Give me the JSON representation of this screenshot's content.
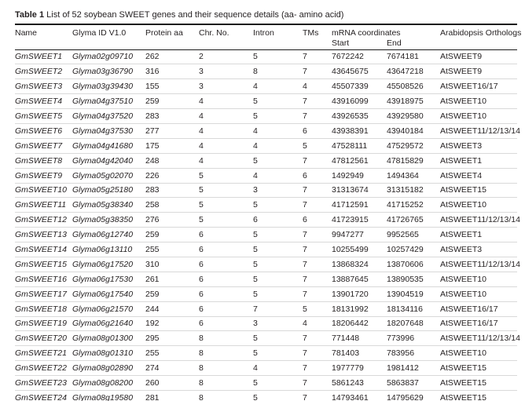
{
  "table": {
    "label": "Table 1",
    "caption": " List of 52 soybean SWEET genes and their sequence details (aa- amino acid)",
    "columns": [
      "Name",
      "Glyma ID V1.0",
      "Protein aa",
      "Chr. No.",
      "Intron",
      "TMs",
      "mRNA coordinates",
      "Arabidopsis Orthologs"
    ],
    "subcolumns": [
      "Start",
      "End"
    ],
    "rows": [
      {
        "name": "GmSWEET1",
        "glyma_id": "Glyma02g09710",
        "protein_aa": "262",
        "chr_no": "2",
        "intron": "5",
        "tms": "7",
        "start": "7672242",
        "end": "7674181",
        "ortholog": "AtSWEET9"
      },
      {
        "name": "GmSWEET2",
        "glyma_id": "Glyma03g36790",
        "protein_aa": "316",
        "chr_no": "3",
        "intron": "8",
        "tms": "7",
        "start": "43645675",
        "end": "43647218",
        "ortholog": "AtSWEET9"
      },
      {
        "name": "GmSWEET3",
        "glyma_id": "Glyma03g39430",
        "protein_aa": "155",
        "chr_no": "3",
        "intron": "4",
        "tms": "4",
        "start": "45507339",
        "end": "45508526",
        "ortholog": "AtSWEET16/17"
      },
      {
        "name": "GmSWEET4",
        "glyma_id": "Glyma04g37510",
        "protein_aa": "259",
        "chr_no": "4",
        "intron": "5",
        "tms": "7",
        "start": "43916099",
        "end": "43918975",
        "ortholog": "AtSWEET10"
      },
      {
        "name": "GmSWEET5",
        "glyma_id": "Glyma04g37520",
        "protein_aa": "283",
        "chr_no": "4",
        "intron": "5",
        "tms": "7",
        "start": "43926535",
        "end": "43929580",
        "ortholog": "AtSWEET10"
      },
      {
        "name": "GmSWEET6",
        "glyma_id": "Glyma04g37530",
        "protein_aa": "277",
        "chr_no": "4",
        "intron": "4",
        "tms": "6",
        "start": "43938391",
        "end": "43940184",
        "ortholog": "AtSWEET11/12/13/14"
      },
      {
        "name": "GmSWEET7",
        "glyma_id": "Glyma04g41680",
        "protein_aa": "175",
        "chr_no": "4",
        "intron": "4",
        "tms": "5",
        "start": "47528111",
        "end": "47529572",
        "ortholog": "AtSWEET3"
      },
      {
        "name": "GmSWEET8",
        "glyma_id": "Glyma04g42040",
        "protein_aa": "248",
        "chr_no": "4",
        "intron": "5",
        "tms": "7",
        "start": "47812561",
        "end": "47815829",
        "ortholog": "AtSWEET1"
      },
      {
        "name": "GmSWEET9",
        "glyma_id": "Glyma05g02070",
        "protein_aa": "226",
        "chr_no": "5",
        "intron": "4",
        "tms": "6",
        "start": "1492949",
        "end": "1494364",
        "ortholog": "AtSWEET4"
      },
      {
        "name": "GmSWEET10",
        "glyma_id": "Glyma05g25180",
        "protein_aa": "283",
        "chr_no": "5",
        "intron": "3",
        "tms": "7",
        "start": "31313674",
        "end": "31315182",
        "ortholog": "AtSWEET15"
      },
      {
        "name": "GmSWEET11",
        "glyma_id": "Glyma05g38340",
        "protein_aa": "258",
        "chr_no": "5",
        "intron": "5",
        "tms": "7",
        "start": "41712591",
        "end": "41715252",
        "ortholog": "AtSWEET10"
      },
      {
        "name": "GmSWEET12",
        "glyma_id": "Glyma05g38350",
        "protein_aa": "276",
        "chr_no": "5",
        "intron": "6",
        "tms": "6",
        "start": "41723915",
        "end": "41726765",
        "ortholog": "AtSWEET11/12/13/14"
      },
      {
        "name": "GmSWEET13",
        "glyma_id": "Glyma06g12740",
        "protein_aa": "259",
        "chr_no": "6",
        "intron": "5",
        "tms": "7",
        "start": "9947277",
        "end": "9952565",
        "ortholog": "AtSWEET1"
      },
      {
        "name": "GmSWEET14",
        "glyma_id": "Glyma06g13110",
        "protein_aa": "255",
        "chr_no": "6",
        "intron": "5",
        "tms": "7",
        "start": "10255499",
        "end": "10257429",
        "ortholog": "AtSWEET3"
      },
      {
        "name": "GmSWEET15",
        "glyma_id": "Glyma06g17520",
        "protein_aa": "310",
        "chr_no": "6",
        "intron": "5",
        "tms": "7",
        "start": "13868324",
        "end": "13870606",
        "ortholog": "AtSWEET11/12/13/14"
      },
      {
        "name": "GmSWEET16",
        "glyma_id": "Glyma06g17530",
        "protein_aa": "261",
        "chr_no": "6",
        "intron": "5",
        "tms": "7",
        "start": "13887645",
        "end": "13890535",
        "ortholog": "AtSWEET10"
      },
      {
        "name": "GmSWEET17",
        "glyma_id": "Glyma06g17540",
        "protein_aa": "259",
        "chr_no": "6",
        "intron": "5",
        "tms": "7",
        "start": "13901720",
        "end": "13904519",
        "ortholog": "AtSWEET10"
      },
      {
        "name": "GmSWEET18",
        "glyma_id": "Glyma06g21570",
        "protein_aa": "244",
        "chr_no": "6",
        "intron": "7",
        "tms": "5",
        "start": "18131992",
        "end": "18134116",
        "ortholog": "AtSWEET16/17"
      },
      {
        "name": "GmSWEET19",
        "glyma_id": "Glyma06g21640",
        "protein_aa": "192",
        "chr_no": "6",
        "intron": "3",
        "tms": "4",
        "start": "18206442",
        "end": "18207648",
        "ortholog": "AtSWEET16/17"
      },
      {
        "name": "GmSWEET20",
        "glyma_id": "Glyma08g01300",
        "protein_aa": "295",
        "chr_no": "8",
        "intron": "5",
        "tms": "7",
        "start": "771448",
        "end": "773996",
        "ortholog": "AtSWEET11/12/13/14"
      },
      {
        "name": "GmSWEET21",
        "glyma_id": "Glyma08g01310",
        "protein_aa": "255",
        "chr_no": "8",
        "intron": "5",
        "tms": "7",
        "start": "781403",
        "end": "783956",
        "ortholog": "AtSWEET10"
      },
      {
        "name": "GmSWEET22",
        "glyma_id": "Glyma08g02890",
        "protein_aa": "274",
        "chr_no": "8",
        "intron": "4",
        "tms": "7",
        "start": "1977779",
        "end": "1981412",
        "ortholog": "AtSWEET15"
      },
      {
        "name": "GmSWEET23",
        "glyma_id": "Glyma08g08200",
        "protein_aa": "260",
        "chr_no": "8",
        "intron": "5",
        "tms": "7",
        "start": "5861243",
        "end": "5863837",
        "ortholog": "AtSWEET15"
      },
      {
        "name": "GmSWEET24",
        "glyma_id": "Glyma08g19580",
        "protein_aa": "281",
        "chr_no": "8",
        "intron": "5",
        "tms": "7",
        "start": "14793461",
        "end": "14795629",
        "ortholog": "AtSWEET15"
      }
    ]
  }
}
